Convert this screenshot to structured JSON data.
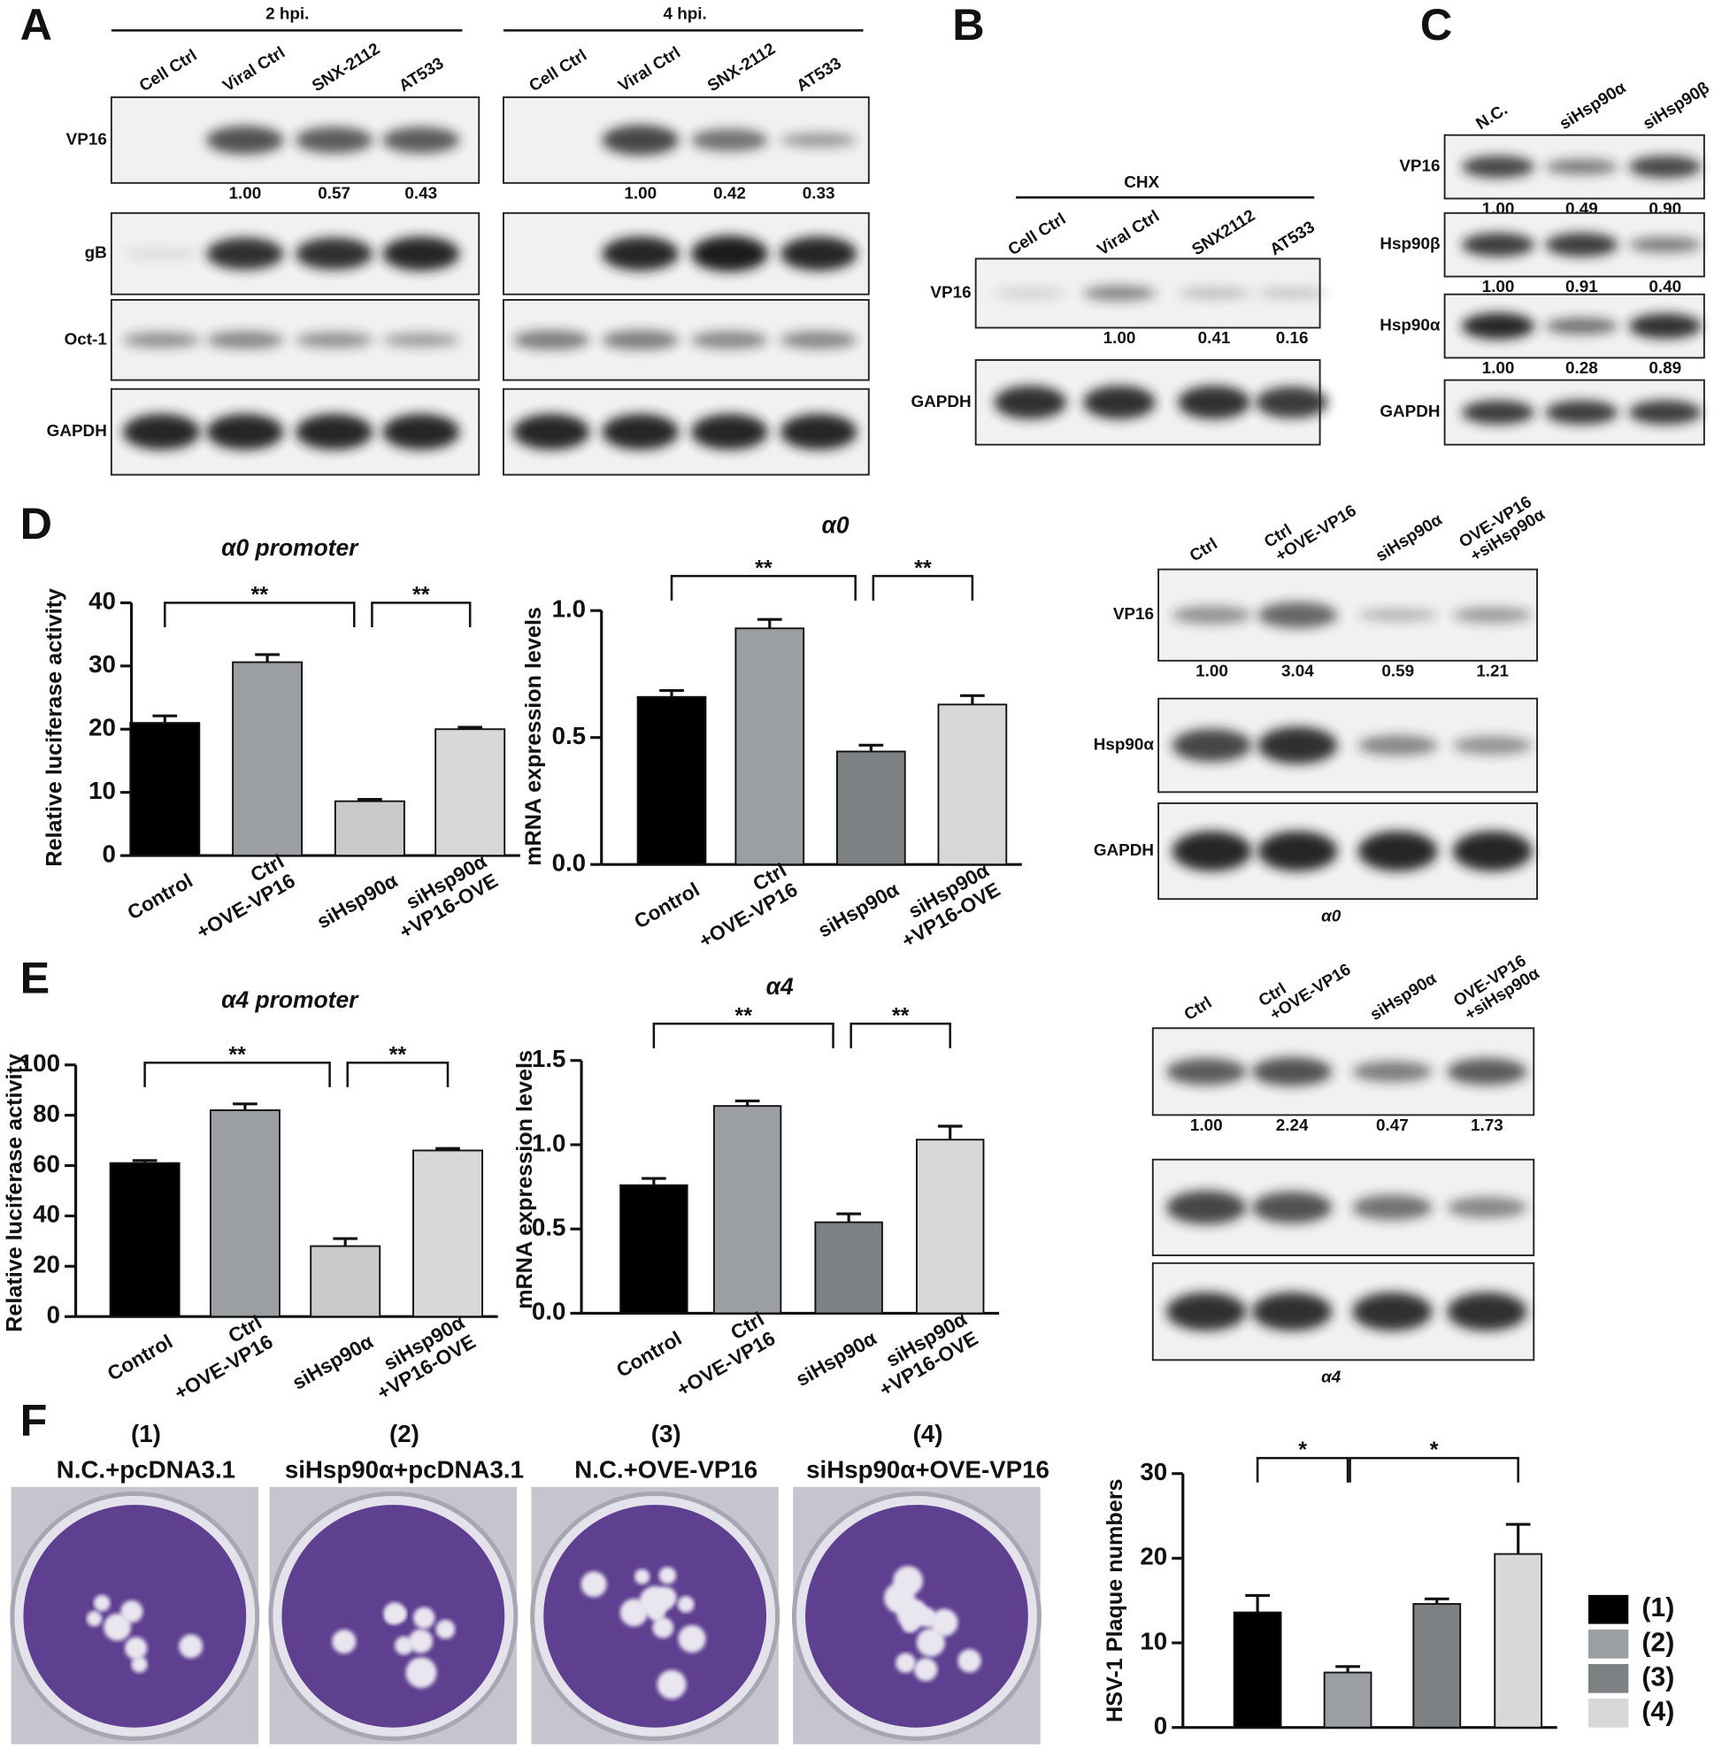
{
  "panel_labels": [
    "A",
    "B",
    "C",
    "D",
    "E",
    "F"
  ],
  "blots": [
    {
      "header": "2 hpi.",
      "lanes": [
        [
          "Cell Ctrl"
        ],
        [
          "Viral Ctrl"
        ],
        [
          "SNX-2112"
        ],
        [
          "AT533"
        ]
      ],
      "rows": [
        {
          "label": "VP16",
          "quant": [
            null,
            "1.00",
            "0.57",
            "0.43"
          ]
        },
        {
          "label": "gB"
        },
        {
          "label": "Oct-1"
        },
        {
          "label": "GAPDH"
        }
      ]
    },
    {
      "header": "4 hpi.",
      "lanes": [
        [
          "Cell Ctrl"
        ],
        [
          "Viral Ctrl"
        ],
        [
          "SNX-2112"
        ],
        [
          "AT533"
        ]
      ],
      "rows": [
        {
          "quant": [
            null,
            "1.00",
            "0.42",
            "0.33"
          ]
        }
      ]
    },
    {
      "header": "CHX",
      "lanes": [
        [
          "Cell Ctrl"
        ],
        [
          "Viral Ctrl"
        ],
        [
          "SNX2112"
        ],
        [
          "AT533"
        ]
      ],
      "rows": [
        {
          "label": "VP16",
          "quant": [
            null,
            "1.00",
            "0.41",
            "0.16"
          ]
        },
        {
          "label": "GAPDH"
        }
      ]
    },
    {
      "lanes": [
        [
          "N.C."
        ],
        [
          "siHsp90α"
        ],
        [
          "siHsp90β"
        ]
      ],
      "rows": [
        {
          "label": "VP16",
          "quant": [
            "1.00",
            "0.49",
            "0.90"
          ]
        },
        {
          "label": "Hsp90β",
          "quant": [
            "1.00",
            "0.91",
            "0.40"
          ]
        },
        {
          "label": "Hsp90α",
          "quant": [
            "1.00",
            "0.28",
            "0.89"
          ]
        },
        {
          "label": "GAPDH"
        }
      ]
    },
    {
      "lanes": [
        [
          "Ctrl"
        ],
        [
          "Ctrl",
          "+OVE-VP16"
        ],
        [
          "siHsp90α"
        ],
        [
          "OVE-VP16",
          "+siHsp90α"
        ]
      ],
      "rows": [
        {
          "label": "VP16",
          "quant": [
            "1.00",
            "3.04",
            "0.59",
            "1.21"
          ]
        },
        {
          "label": "Hsp90α"
        },
        {
          "label": "GAPDH"
        }
      ],
      "caption": "α0"
    },
    {
      "lanes": [
        [
          "Ctrl"
        ],
        [
          "Ctrl",
          "+OVE-VP16"
        ],
        [
          "siHsp90α"
        ],
        [
          "OVE-VP16",
          "+siHsp90α"
        ]
      ],
      "rows": [
        {
          "quant": [
            "1.00",
            "2.24",
            "0.47",
            "1.73"
          ]
        }
      ],
      "caption": "α4"
    }
  ],
  "plates": [
    {
      "number": "(1)",
      "label": "N.C.+pcDNA3.1"
    },
    {
      "number": "(2)",
      "label": "siHsp90α+pcDNA3.1"
    },
    {
      "number": "(3)",
      "label": "N.C.+OVE-VP16"
    },
    {
      "number": "(4)",
      "label": "siHsp90α+OVE-VP16"
    }
  ],
  "chart_data": [
    {
      "type": "bar",
      "title": "α0 promoter",
      "y_label": "Relative luciferase activity",
      "categories": [
        [
          "Control"
        ],
        [
          "Ctrl",
          "+OVE-VP16"
        ],
        [
          "siHsp90α"
        ],
        [
          "siHsp90α",
          "+VP16-OVE"
        ]
      ],
      "values": [
        21,
        30.6,
        8.6,
        20
      ],
      "errors": [
        1.1,
        1.2,
        0.3,
        0.3
      ],
      "colors": [
        "#000000",
        "#9b9ea2",
        "#c8cacc",
        "#d7d8da"
      ],
      "ylim": [
        0,
        40
      ],
      "yticks": [
        0,
        10,
        20,
        30,
        40
      ],
      "annotations": [
        {
          "from": 0,
          "to": 2,
          "label": "**"
        },
        {
          "from": 2,
          "to": 3,
          "label": "**"
        }
      ]
    },
    {
      "type": "bar",
      "title": "α0",
      "y_label": "mRNA expression levels",
      "categories": [
        [
          "Control"
        ],
        [
          "Ctrl",
          "+OVE-VP16"
        ],
        [
          "siHsp90α"
        ],
        [
          "siHsp90α",
          "+VP16-OVE"
        ]
      ],
      "values": [
        0.66,
        0.93,
        0.445,
        0.63
      ],
      "errors": [
        0.025,
        0.035,
        0.025,
        0.035
      ],
      "colors": [
        "#000000",
        "#9b9ea2",
        "#7e8184",
        "#d7d8da"
      ],
      "ylim": [
        0,
        1.0
      ],
      "yticks": [
        {
          "value": 0,
          "label": "0.0"
        },
        {
          "value": 0.5,
          "label": "0.5"
        },
        {
          "value": 1,
          "label": "1.0"
        }
      ],
      "annotations": [
        {
          "from": 0,
          "to": 2,
          "label": "**"
        },
        {
          "from": 2,
          "to": 3,
          "label": "**"
        }
      ]
    },
    {
      "type": "bar",
      "title": "α4 promoter",
      "y_label": "Relative luciferase activity",
      "categories": [
        [
          "Control"
        ],
        [
          "Ctrl",
          "+OVE-VP16"
        ],
        [
          "siHsp90α"
        ],
        [
          "siHsp90α",
          "+VP16-OVE"
        ]
      ],
      "values": [
        61,
        82,
        28,
        66
      ],
      "errors": [
        1,
        2.5,
        3,
        0.8
      ],
      "colors": [
        "#000000",
        "#9b9ea2",
        "#c8cacc",
        "#d7d8da"
      ],
      "ylim": [
        0,
        100
      ],
      "yticks": [
        0,
        20,
        40,
        60,
        80,
        100
      ],
      "annotations": [
        {
          "from": 0,
          "to": 2,
          "label": "**"
        },
        {
          "from": 2,
          "to": 3,
          "label": "**"
        }
      ]
    },
    {
      "type": "bar",
      "title": "α4",
      "y_label": "mRNA expression levels",
      "categories": [
        [
          "Control"
        ],
        [
          "Ctrl",
          "+OVE-VP16"
        ],
        [
          "siHsp90α"
        ],
        [
          "siHsp90α",
          "+VP16-OVE"
        ]
      ],
      "values": [
        0.76,
        1.23,
        0.54,
        1.03
      ],
      "errors": [
        0.04,
        0.03,
        0.05,
        0.08
      ],
      "colors": [
        "#000000",
        "#9b9ea2",
        "#7e8184",
        "#d7d8da"
      ],
      "ylim": [
        0,
        1.5
      ],
      "yticks": [
        {
          "value": 0,
          "label": "0.0"
        },
        {
          "value": 0.5,
          "label": "0.5"
        },
        {
          "value": 1,
          "label": "1.0"
        },
        {
          "value": 1.5,
          "label": "1.5"
        }
      ],
      "annotations": [
        {
          "from": 0,
          "to": 2,
          "label": "**"
        },
        {
          "from": 2,
          "to": 3,
          "label": "**"
        }
      ]
    },
    {
      "type": "bar",
      "y_label": "HSV-1 Plaque numbers",
      "categories": [
        "(1)",
        "(2)",
        "(3)",
        "(4)"
      ],
      "values": [
        13.6,
        6.5,
        14.6,
        20.5
      ],
      "errors": [
        2,
        0.7,
        0.6,
        3.5
      ],
      "colors": [
        "#000000",
        "#9b9ea2",
        "#7e8184",
        "#d7d8da"
      ],
      "ylim": [
        0,
        30
      ],
      "yticks": [
        0,
        10,
        20,
        30
      ],
      "legend": "right",
      "annotations": [
        {
          "from": 0,
          "to": 1,
          "label": "*"
        },
        {
          "from": 1,
          "to": 3,
          "label": "*"
        }
      ]
    }
  ]
}
